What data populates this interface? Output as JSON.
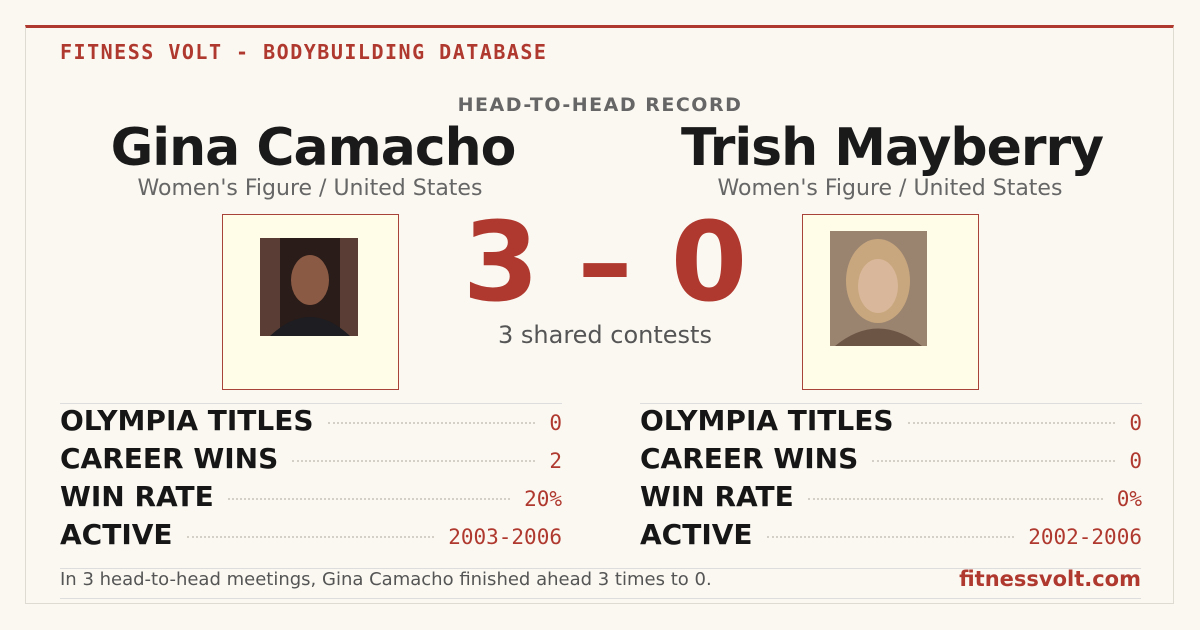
{
  "header": {
    "brand": "FITNESS VOLT - BODYBUILDING DATABASE",
    "title": "HEAD-TO-HEAD RECORD"
  },
  "athletes": [
    {
      "name": "Gina Camacho",
      "subtitle": "Women's Figure / United States",
      "stats": [
        [
          "OLYMPIA TITLES",
          "0"
        ],
        [
          "CAREER WINS",
          "2"
        ],
        [
          "WIN RATE",
          "20%"
        ],
        [
          "ACTIVE",
          "2003-2006"
        ]
      ]
    },
    {
      "name": "Trish Mayberry",
      "subtitle": "Women's Figure / United States",
      "stats": [
        [
          "OLYMPIA TITLES",
          "0"
        ],
        [
          "CAREER WINS",
          "0"
        ],
        [
          "WIN RATE",
          "0%"
        ],
        [
          "ACTIVE",
          "2002-2006"
        ]
      ]
    }
  ],
  "score": "3 – 0",
  "shared": "3 shared contests",
  "footer": {
    "summary": "In 3 head-to-head meetings, Gina Camacho finished ahead 3 times to 0.",
    "site": "fitnessvolt.com"
  }
}
